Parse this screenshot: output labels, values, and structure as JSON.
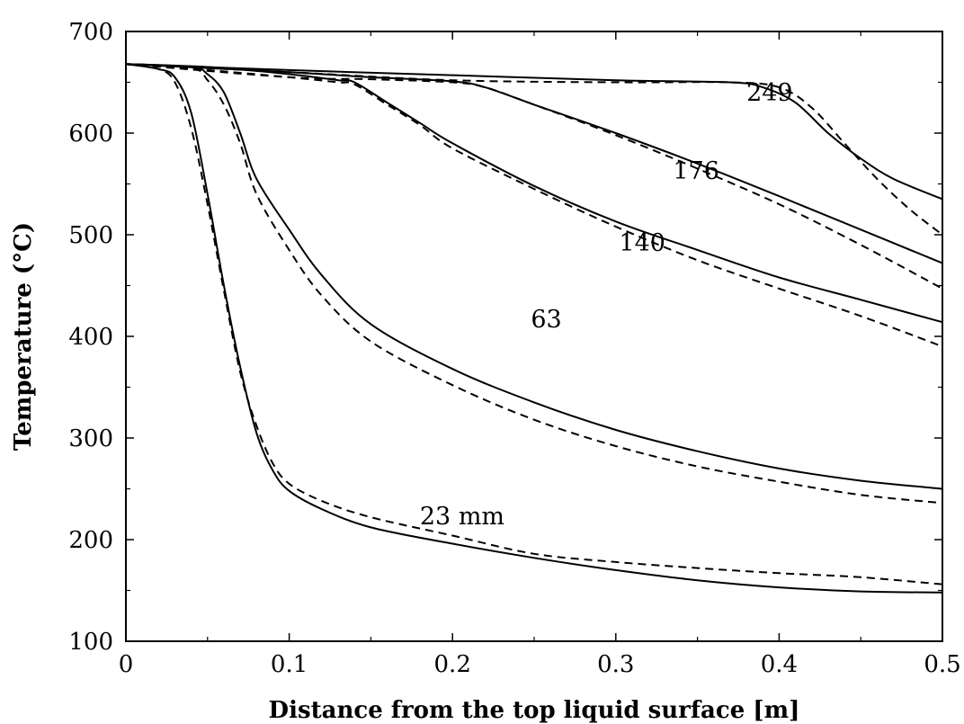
{
  "chart_data": {
    "type": "line",
    "title": "",
    "xlabel": "Distance from the top liquid surface [m]",
    "ylabel": "Temperature (°C)",
    "xlim": [
      0,
      0.5
    ],
    "ylim": [
      100,
      700
    ],
    "x_ticks": [
      0,
      0.1,
      0.2,
      0.3,
      0.4,
      0.5
    ],
    "x_tick_labels": [
      "0",
      "0.1",
      "0.2",
      "0.3",
      "0.4",
      "0.5"
    ],
    "y_ticks": [
      100,
      200,
      300,
      400,
      500,
      600,
      700
    ],
    "y_tick_labels": [
      "100",
      "200",
      "300",
      "400",
      "500",
      "600",
      "700"
    ],
    "grid": false,
    "legend": "none",
    "line_color": "#000000",
    "annotations": [
      {
        "text": "249",
        "x": 0.38,
        "y": 632
      },
      {
        "text": "176",
        "x": 0.335,
        "y": 555
      },
      {
        "text": "140",
        "x": 0.302,
        "y": 484
      },
      {
        "text": "63",
        "x": 0.248,
        "y": 409
      },
      {
        "text": "23 mm",
        "x": 0.18,
        "y": 215
      }
    ],
    "series": [
      {
        "style": "solid",
        "curve_label": "23 mm",
        "points": [
          [
            0,
            668
          ],
          [
            0.02,
            663
          ],
          [
            0.03,
            655
          ],
          [
            0.04,
            620
          ],
          [
            0.05,
            540
          ],
          [
            0.06,
            450
          ],
          [
            0.07,
            370
          ],
          [
            0.08,
            305
          ],
          [
            0.09,
            268
          ],
          [
            0.1,
            248
          ],
          [
            0.12,
            230
          ],
          [
            0.15,
            212
          ],
          [
            0.2,
            196
          ],
          [
            0.25,
            182
          ],
          [
            0.3,
            170
          ],
          [
            0.35,
            160
          ],
          [
            0.4,
            153
          ],
          [
            0.45,
            149
          ],
          [
            0.5,
            148
          ]
        ]
      },
      {
        "style": "dashed",
        "curve_label": "23 mm",
        "points": [
          [
            0,
            668
          ],
          [
            0.02,
            663
          ],
          [
            0.03,
            650
          ],
          [
            0.04,
            605
          ],
          [
            0.05,
            530
          ],
          [
            0.06,
            445
          ],
          [
            0.07,
            365
          ],
          [
            0.08,
            312
          ],
          [
            0.09,
            275
          ],
          [
            0.1,
            255
          ],
          [
            0.12,
            238
          ],
          [
            0.15,
            222
          ],
          [
            0.2,
            204
          ],
          [
            0.25,
            186
          ],
          [
            0.3,
            178
          ],
          [
            0.35,
            172
          ],
          [
            0.4,
            167
          ],
          [
            0.45,
            163
          ],
          [
            0.5,
            156
          ]
        ]
      },
      {
        "style": "solid",
        "curve_label": "63",
        "points": [
          [
            0,
            668
          ],
          [
            0.04,
            665
          ],
          [
            0.05,
            658
          ],
          [
            0.06,
            640
          ],
          [
            0.07,
            600
          ],
          [
            0.08,
            555
          ],
          [
            0.1,
            505
          ],
          [
            0.12,
            460
          ],
          [
            0.15,
            412
          ],
          [
            0.2,
            368
          ],
          [
            0.25,
            335
          ],
          [
            0.3,
            308
          ],
          [
            0.35,
            287
          ],
          [
            0.4,
            270
          ],
          [
            0.45,
            258
          ],
          [
            0.5,
            250
          ]
        ]
      },
      {
        "style": "dashed",
        "curve_label": "63",
        "points": [
          [
            0,
            668
          ],
          [
            0.04,
            664
          ],
          [
            0.05,
            652
          ],
          [
            0.06,
            628
          ],
          [
            0.07,
            590
          ],
          [
            0.08,
            540
          ],
          [
            0.1,
            485
          ],
          [
            0.12,
            440
          ],
          [
            0.15,
            395
          ],
          [
            0.2,
            352
          ],
          [
            0.25,
            318
          ],
          [
            0.3,
            292
          ],
          [
            0.35,
            272
          ],
          [
            0.4,
            257
          ],
          [
            0.45,
            244
          ],
          [
            0.5,
            236
          ]
        ]
      },
      {
        "style": "solid",
        "curve_label": "140",
        "points": [
          [
            0,
            668
          ],
          [
            0.05,
            665
          ],
          [
            0.1,
            658
          ],
          [
            0.13,
            652
          ],
          [
            0.14,
            650
          ],
          [
            0.16,
            630
          ],
          [
            0.18,
            610
          ],
          [
            0.2,
            590
          ],
          [
            0.25,
            548
          ],
          [
            0.3,
            513
          ],
          [
            0.35,
            485
          ],
          [
            0.4,
            458
          ],
          [
            0.45,
            436
          ],
          [
            0.5,
            414
          ]
        ]
      },
      {
        "style": "dashed",
        "curve_label": "140",
        "points": [
          [
            0,
            668
          ],
          [
            0.05,
            662
          ],
          [
            0.1,
            655
          ],
          [
            0.13,
            650
          ],
          [
            0.14,
            648
          ],
          [
            0.16,
            628
          ],
          [
            0.18,
            608
          ],
          [
            0.2,
            585
          ],
          [
            0.25,
            545
          ],
          [
            0.3,
            508
          ],
          [
            0.35,
            475
          ],
          [
            0.4,
            447
          ],
          [
            0.45,
            420
          ],
          [
            0.5,
            390
          ]
        ]
      },
      {
        "style": "solid",
        "curve_label": "176",
        "points": [
          [
            0,
            668
          ],
          [
            0.1,
            660
          ],
          [
            0.15,
            655
          ],
          [
            0.2,
            651
          ],
          [
            0.22,
            645
          ],
          [
            0.25,
            628
          ],
          [
            0.3,
            600
          ],
          [
            0.35,
            570
          ],
          [
            0.4,
            538
          ],
          [
            0.45,
            505
          ],
          [
            0.5,
            472
          ]
        ]
      },
      {
        "style": "dashed",
        "curve_label": "176",
        "points": [
          [
            0,
            668
          ],
          [
            0.1,
            655
          ],
          [
            0.15,
            653
          ],
          [
            0.2,
            650
          ],
          [
            0.22,
            645
          ],
          [
            0.25,
            628
          ],
          [
            0.3,
            598
          ],
          [
            0.35,
            565
          ],
          [
            0.4,
            530
          ],
          [
            0.45,
            490
          ],
          [
            0.5,
            447
          ]
        ]
      },
      {
        "style": "solid",
        "curve_label": "249",
        "points": [
          [
            0,
            668
          ],
          [
            0.1,
            662
          ],
          [
            0.2,
            657
          ],
          [
            0.3,
            652
          ],
          [
            0.37,
            650
          ],
          [
            0.39,
            645
          ],
          [
            0.41,
            630
          ],
          [
            0.43,
            600
          ],
          [
            0.45,
            575
          ],
          [
            0.47,
            555
          ],
          [
            0.5,
            535
          ]
        ]
      },
      {
        "style": "dashed",
        "curve_label": "249",
        "points": [
          [
            0,
            668
          ],
          [
            0.1,
            660
          ],
          [
            0.2,
            652
          ],
          [
            0.3,
            650
          ],
          [
            0.37,
            650
          ],
          [
            0.4,
            645
          ],
          [
            0.42,
            625
          ],
          [
            0.44,
            590
          ],
          [
            0.46,
            555
          ],
          [
            0.48,
            525
          ],
          [
            0.5,
            500
          ]
        ]
      }
    ]
  }
}
